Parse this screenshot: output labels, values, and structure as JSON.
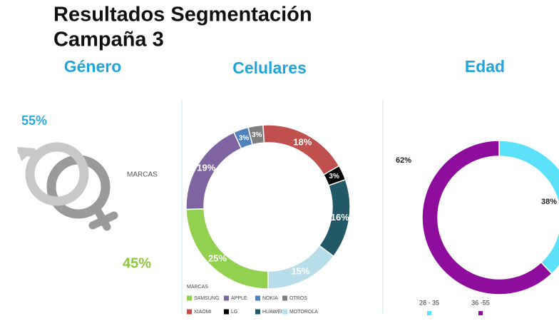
{
  "title": [
    "Resultados Segmentación",
    "Campaña 3"
  ],
  "note": "MARCAS",
  "chart_data": [
    {
      "type": "gender",
      "title": "Género",
      "values": [
        55,
        45
      ],
      "value_labels": [
        "55%",
        "45%"
      ],
      "colors": [
        "#29a8e0",
        "#8dc63f"
      ]
    },
    {
      "type": "donut",
      "title": "Celulares",
      "legend_title": "MARCAS",
      "categories": [
        "SAMSUNG",
        "APPLE",
        "NOKIA",
        "OTROS",
        "XIAOMI",
        "LG",
        "HUAWEI",
        "MOTOROLA"
      ],
      "values": [
        25,
        19,
        3,
        3,
        18,
        3,
        16,
        15
      ],
      "value_labels": [
        "25%",
        "19%",
        "3%",
        "3%",
        "18%",
        "3%",
        "16%",
        "15%"
      ],
      "colors": [
        "#92d050",
        "#8064a2",
        "#4f81bd",
        "#7f7f7f",
        "#c0504d",
        "#000000",
        "#215967",
        "#b7dee8"
      ]
    },
    {
      "type": "donut",
      "title": "Edad",
      "categories": [
        "28 - 35",
        "36 -55"
      ],
      "values": [
        38,
        62
      ],
      "value_labels": [
        "38%",
        "62%"
      ],
      "colors": [
        "#5ce1fa",
        "#8e0d9c"
      ]
    }
  ]
}
